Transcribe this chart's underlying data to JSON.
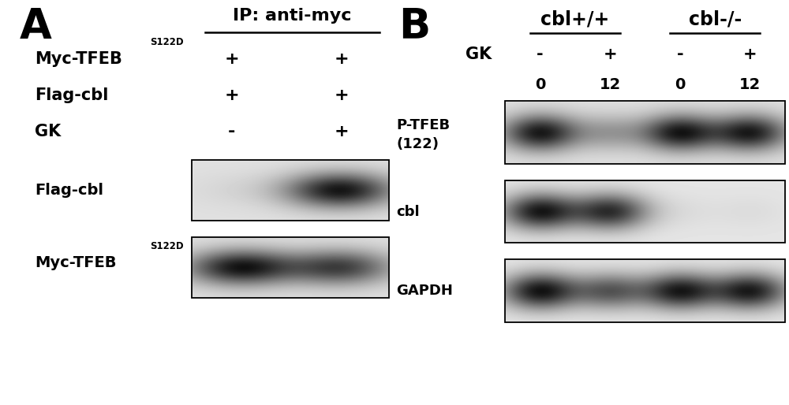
{
  "bg_color": "#ffffff",
  "fig_width": 10.0,
  "fig_height": 5.14,
  "fig_dpi": 100,
  "panel_A": {
    "label": "A",
    "ip_header": "IP: anti-myc",
    "rows": [
      {
        "label": "Myc-TFEB",
        "superscript": "S122D",
        "col1": "+",
        "col2": "+"
      },
      {
        "label": "Flag-cbl",
        "superscript": null,
        "col1": "+",
        "col2": "+"
      },
      {
        "label": "GK",
        "superscript": null,
        "col1": "-",
        "col2": "+"
      }
    ],
    "blot1_label": "Flag-cbl",
    "blot1_intensities": [
      0.05,
      0.92
    ],
    "blot2_label": "Myc-TFEB",
    "blot2_superscript": "S122D",
    "blot2_intensities": [
      0.92,
      0.72
    ]
  },
  "panel_B": {
    "label": "B",
    "group1": "cbl+/+",
    "group2": "cbl-/-",
    "gk_vals": [
      "-",
      "+",
      "-",
      "+"
    ],
    "num_vals": [
      "0",
      "12",
      "0",
      "12"
    ],
    "blot_ptfeb_label": "P-TFEB\n(122)",
    "blot_ptfeb_intensities": [
      0.9,
      0.3,
      0.9,
      0.88
    ],
    "blot_cbl_label": "cbl",
    "blot_cbl_intensities": [
      0.9,
      0.8,
      0.04,
      0.04
    ],
    "blot_gapdh_label": "GAPDH",
    "blot_gapdh_intensities": [
      0.92,
      0.6,
      0.88,
      0.88
    ]
  }
}
